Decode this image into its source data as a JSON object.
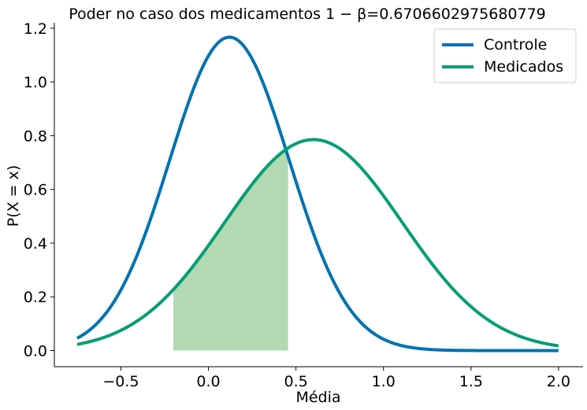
{
  "chart_data": {
    "type": "line",
    "title": "Poder no caso dos medicamentos 1 − β=0.6706602975680779",
    "xlabel": "Média",
    "ylabel": "P(X = x)",
    "xlim": [
      -0.88,
      2.14
    ],
    "ylim": [
      -0.06,
      1.22
    ],
    "xticks": [
      -0.5,
      0.0,
      0.5,
      1.0,
      1.5,
      2.0
    ],
    "xtick_labels": [
      "−0.5",
      "0.0",
      "0.5",
      "1.0",
      "1.5",
      "2.0"
    ],
    "yticks": [
      0.0,
      0.2,
      0.4,
      0.6,
      0.8,
      1.0,
      1.2
    ],
    "ytick_labels": [
      "0.0",
      "0.2",
      "0.4",
      "0.6",
      "0.8",
      "1.0",
      "1.2"
    ],
    "grid": false,
    "legend_position": "top-right",
    "series": [
      {
        "name": "Controle",
        "color": "#0072b2",
        "distribution": "normal",
        "mean": 0.12,
        "sd": 0.342,
        "x_range": [
          -0.75,
          2.0
        ]
      },
      {
        "name": "Medicados",
        "color": "#009e73",
        "distribution": "normal",
        "mean": 0.6,
        "sd": 0.508,
        "x_range": [
          -0.75,
          2.0
        ]
      }
    ],
    "shaded_region": {
      "series": "Medicados",
      "x_from": -0.2,
      "x_to": 0.455,
      "color": "#b2d9b2"
    }
  }
}
